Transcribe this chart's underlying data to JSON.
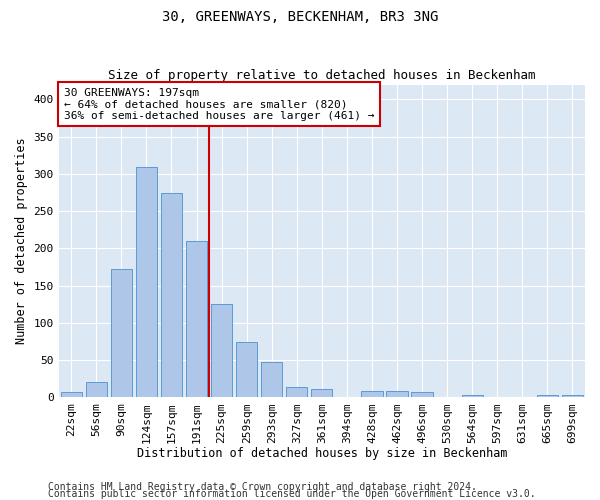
{
  "title": "30, GREENWAYS, BECKENHAM, BR3 3NG",
  "subtitle": "Size of property relative to detached houses in Beckenham",
  "xlabel": "Distribution of detached houses by size in Beckenham",
  "ylabel": "Number of detached properties",
  "bar_labels": [
    "22sqm",
    "56sqm",
    "90sqm",
    "124sqm",
    "157sqm",
    "191sqm",
    "225sqm",
    "259sqm",
    "293sqm",
    "327sqm",
    "361sqm",
    "394sqm",
    "428sqm",
    "462sqm",
    "496sqm",
    "530sqm",
    "564sqm",
    "597sqm",
    "631sqm",
    "665sqm",
    "699sqm"
  ],
  "bar_values": [
    7,
    21,
    172,
    310,
    275,
    210,
    125,
    75,
    48,
    14,
    12,
    0,
    9,
    9,
    8,
    0,
    3,
    0,
    0,
    3,
    3
  ],
  "bar_color": "#aec6e8",
  "bar_edge_color": "#5b9bd5",
  "vline_color": "#cc0000",
  "annotation_line1": "30 GREENWAYS: 197sqm",
  "annotation_line2": "← 64% of detached houses are smaller (820)",
  "annotation_line3": "36% of semi-detached houses are larger (461) →",
  "annotation_box_color": "#cc0000",
  "ylim": [
    0,
    420
  ],
  "yticks": [
    0,
    50,
    100,
    150,
    200,
    250,
    300,
    350,
    400
  ],
  "footer1": "Contains HM Land Registry data © Crown copyright and database right 2024.",
  "footer2": "Contains public sector information licensed under the Open Government Licence v3.0.",
  "plot_bg_color": "#dde8f5",
  "title_fontsize": 10,
  "subtitle_fontsize": 9,
  "axis_label_fontsize": 8.5,
  "tick_fontsize": 8,
  "footer_fontsize": 7
}
